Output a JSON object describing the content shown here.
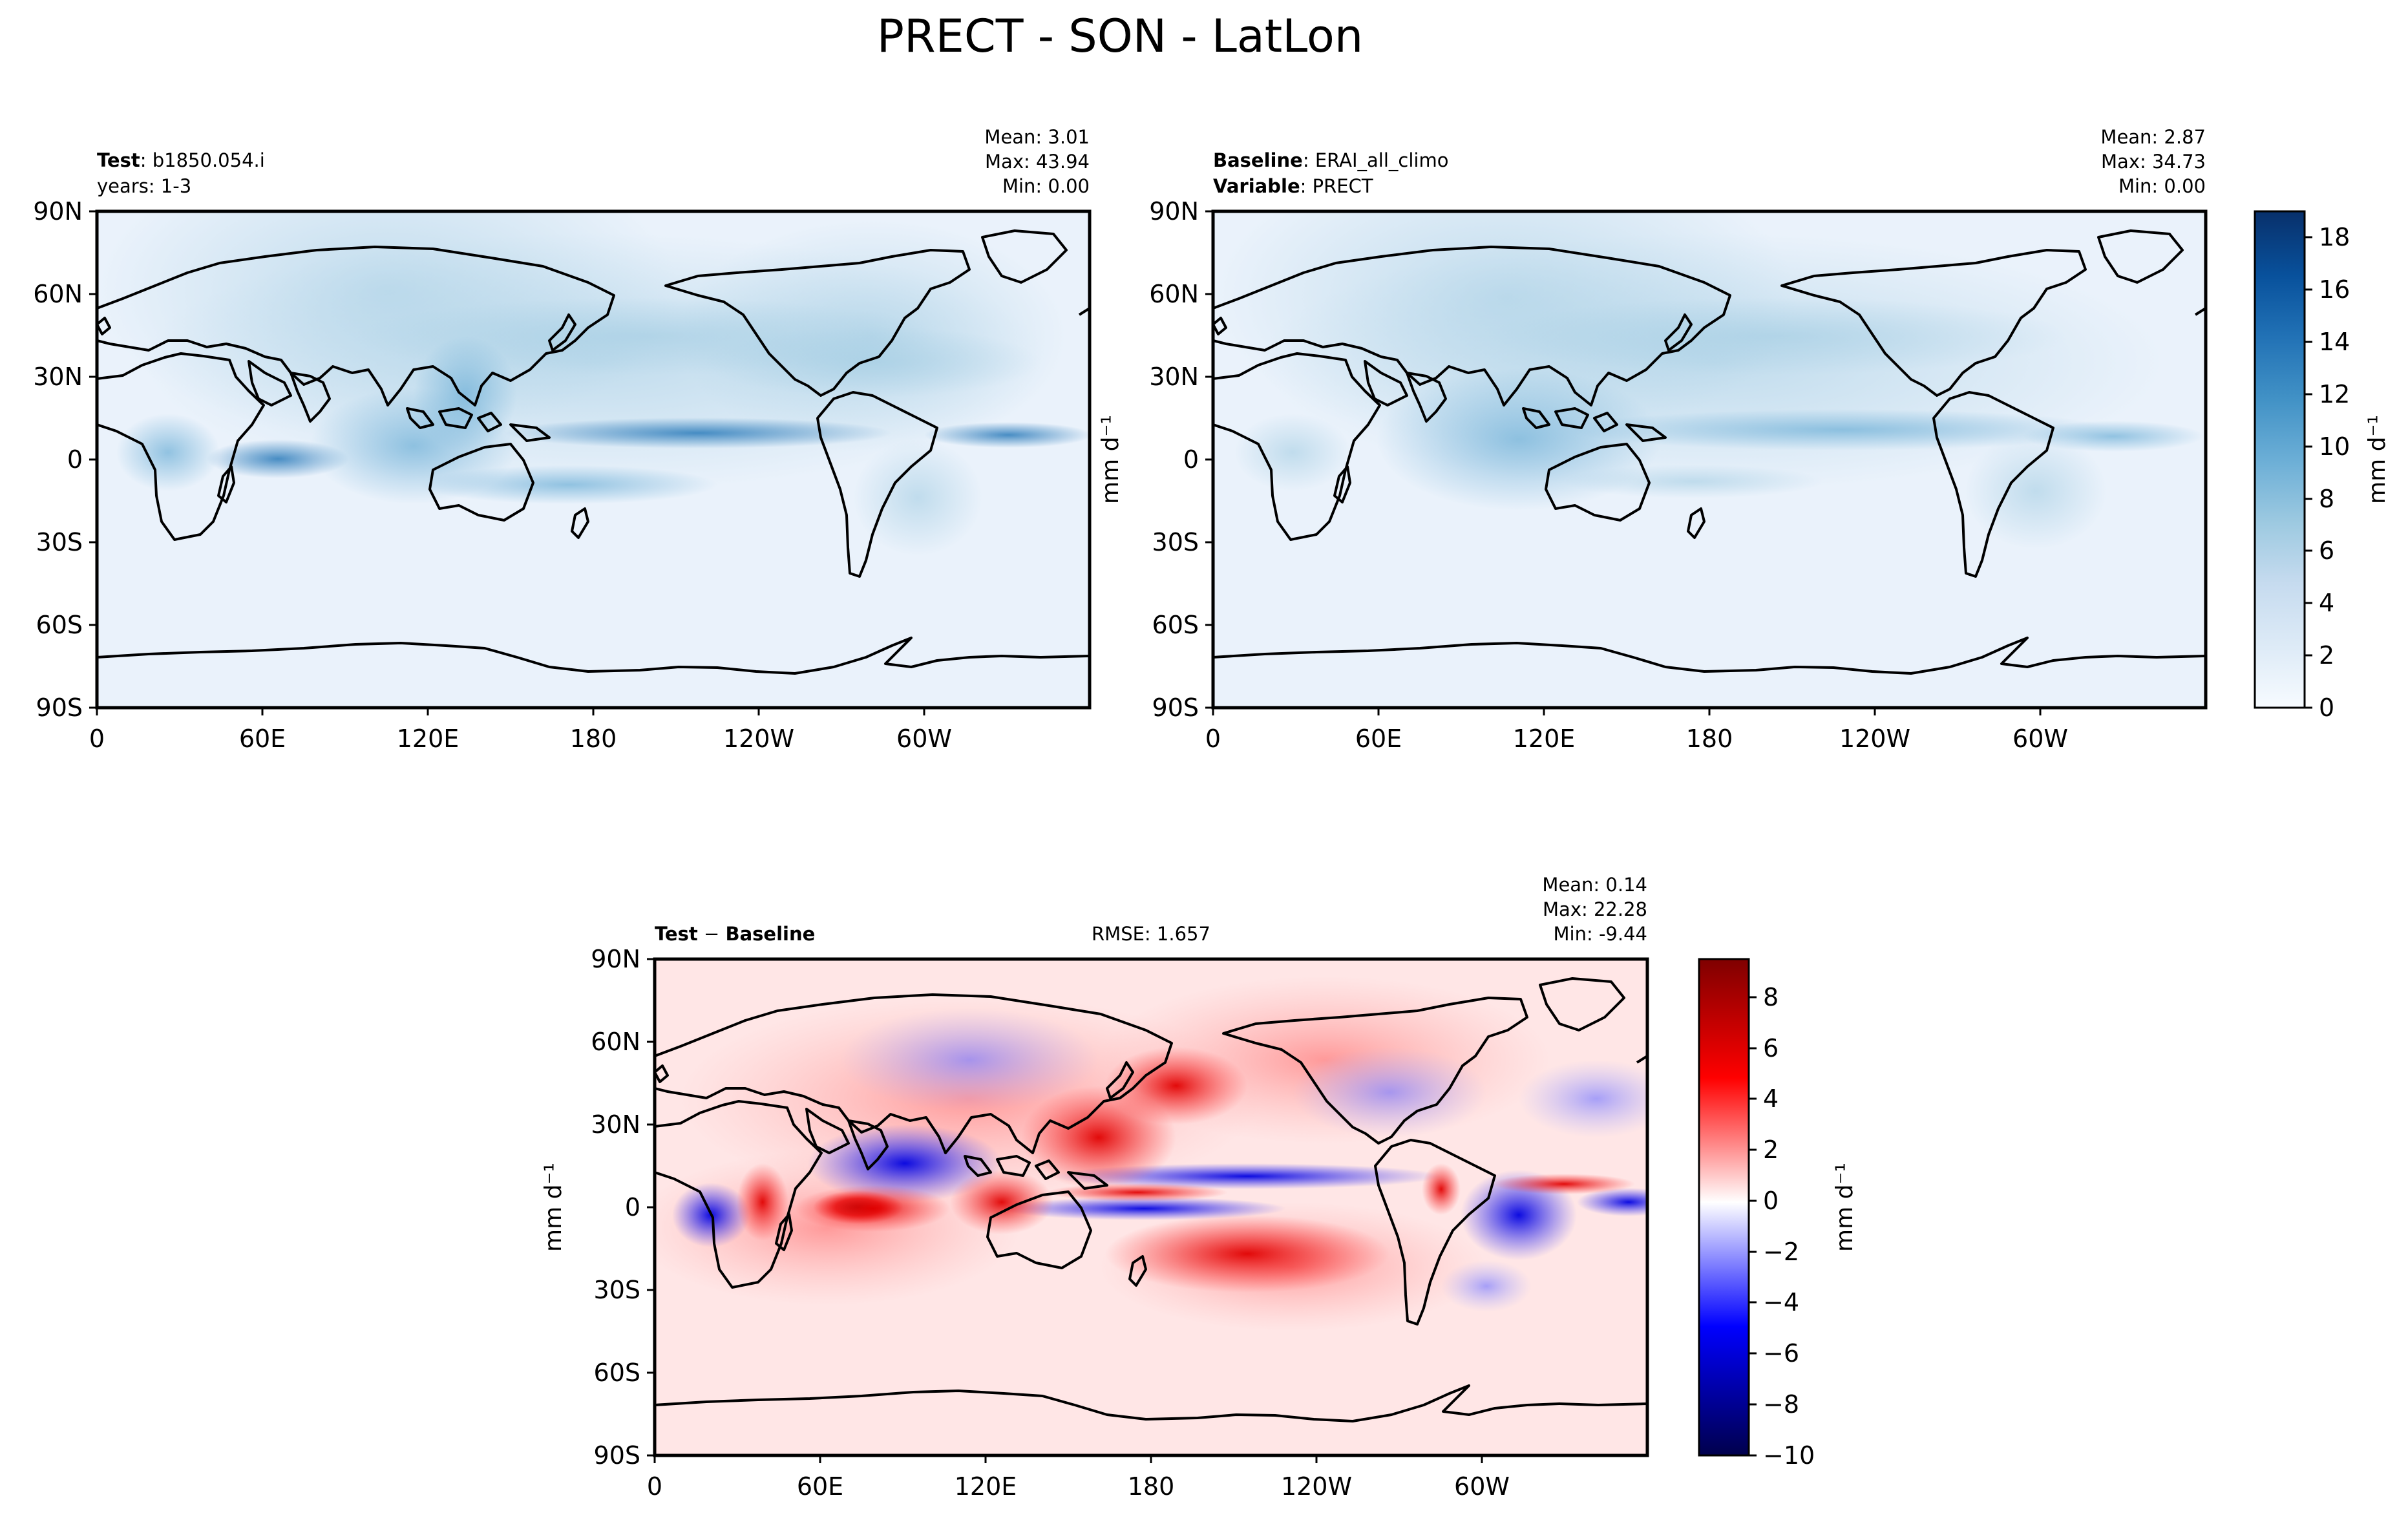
{
  "figure": {
    "title": "PRECT - SON - LatLon"
  },
  "panels": {
    "test": {
      "name_label": "Test",
      "name_value": "b1850.054.i",
      "years": "years: 1-3",
      "mean": "Mean:  3.01",
      "max": "Max: 43.94",
      "min": "Min:  0.00"
    },
    "baseline": {
      "name_label": "Baseline",
      "name_value": "ERAI_all_climo",
      "var_label": "Variable",
      "var_value": "PRECT",
      "mean": "Mean:  2.87",
      "max": "Max: 34.73",
      "min": "Min:  0.00",
      "ylabel": "mm d⁻¹"
    },
    "diff": {
      "title_left": "Test",
      "title_op": "−",
      "title_right": "Baseline",
      "rmse": "RMSE: 1.657",
      "mean": "Mean:  0.14",
      "max": "Max: 22.28",
      "min": "Min: -9.44",
      "ylabel": "mm d⁻¹"
    }
  },
  "axes": {
    "lon_ticks": [
      "0",
      "60E",
      "120E",
      "180",
      "120W",
      "60W"
    ],
    "lat_ticks": [
      "90N",
      "60N",
      "30N",
      "0",
      "30S",
      "60S",
      "90S"
    ]
  },
  "colorbars": {
    "precip": {
      "label": "mm d⁻¹",
      "ticks": [
        "0",
        "2",
        "4",
        "6",
        "8",
        "10",
        "12",
        "14",
        "16",
        "18"
      ],
      "range": [
        0,
        19
      ],
      "colormap": "Blues",
      "colors": [
        "#f7fbff",
        "#deebf7",
        "#c6dbef",
        "#9ecae1",
        "#6baed6",
        "#4292c6",
        "#2171b5",
        "#08519c",
        "#08306b"
      ]
    },
    "diff": {
      "label": "mm d⁻¹",
      "ticks": [
        "8",
        "6",
        "4",
        "2",
        "0",
        "−2",
        "−4",
        "−6",
        "−8",
        "−10"
      ],
      "range": [
        -10,
        9.5
      ],
      "colormap": "seismic",
      "colors": [
        "#00004c",
        "#0000ff",
        "#ffffff",
        "#ff0000",
        "#7f0000"
      ]
    }
  },
  "chart_data": [
    {
      "type": "heatmap",
      "title": "Test: b1850.054.i",
      "subtitle": "years: 1-3",
      "variable": "PRECT",
      "season": "SON",
      "x_ticks": [
        "0",
        "60E",
        "120E",
        "180",
        "120W",
        "60W"
      ],
      "y_ticks": [
        "90N",
        "60N",
        "30N",
        "0",
        "30S",
        "60S",
        "90S"
      ],
      "xlim": [
        0,
        360
      ],
      "ylim": [
        -90,
        90
      ],
      "stats": {
        "mean": 3.01,
        "max": 43.94,
        "min": 0.0
      },
      "colorbar": {
        "range": [
          0,
          19
        ],
        "units": "mm d⁻¹"
      }
    },
    {
      "type": "heatmap",
      "title": "Baseline: ERAI_all_climo",
      "subtitle": "Variable: PRECT",
      "variable": "PRECT",
      "season": "SON",
      "x_ticks": [
        "0",
        "60E",
        "120E",
        "180",
        "120W",
        "60W"
      ],
      "y_ticks": [
        "90N",
        "60N",
        "30N",
        "0",
        "30S",
        "60S",
        "90S"
      ],
      "xlim": [
        0,
        360
      ],
      "ylim": [
        -90,
        90
      ],
      "stats": {
        "mean": 2.87,
        "max": 34.73,
        "min": 0.0
      },
      "colorbar": {
        "range": [
          0,
          19
        ],
        "units": "mm d⁻¹"
      }
    },
    {
      "type": "heatmap",
      "title": "Test − Baseline",
      "variable": "PRECT",
      "season": "SON",
      "x_ticks": [
        "0",
        "60E",
        "120E",
        "180",
        "120W",
        "60W"
      ],
      "y_ticks": [
        "90N",
        "60N",
        "30N",
        "0",
        "30S",
        "60S",
        "90S"
      ],
      "xlim": [
        0,
        360
      ],
      "ylim": [
        -90,
        90
      ],
      "stats": {
        "mean": 0.14,
        "max": 22.28,
        "min": -9.44,
        "rmse": 1.657
      },
      "colorbar": {
        "range": [
          -10,
          9.5
        ],
        "units": "mm d⁻¹"
      }
    }
  ]
}
